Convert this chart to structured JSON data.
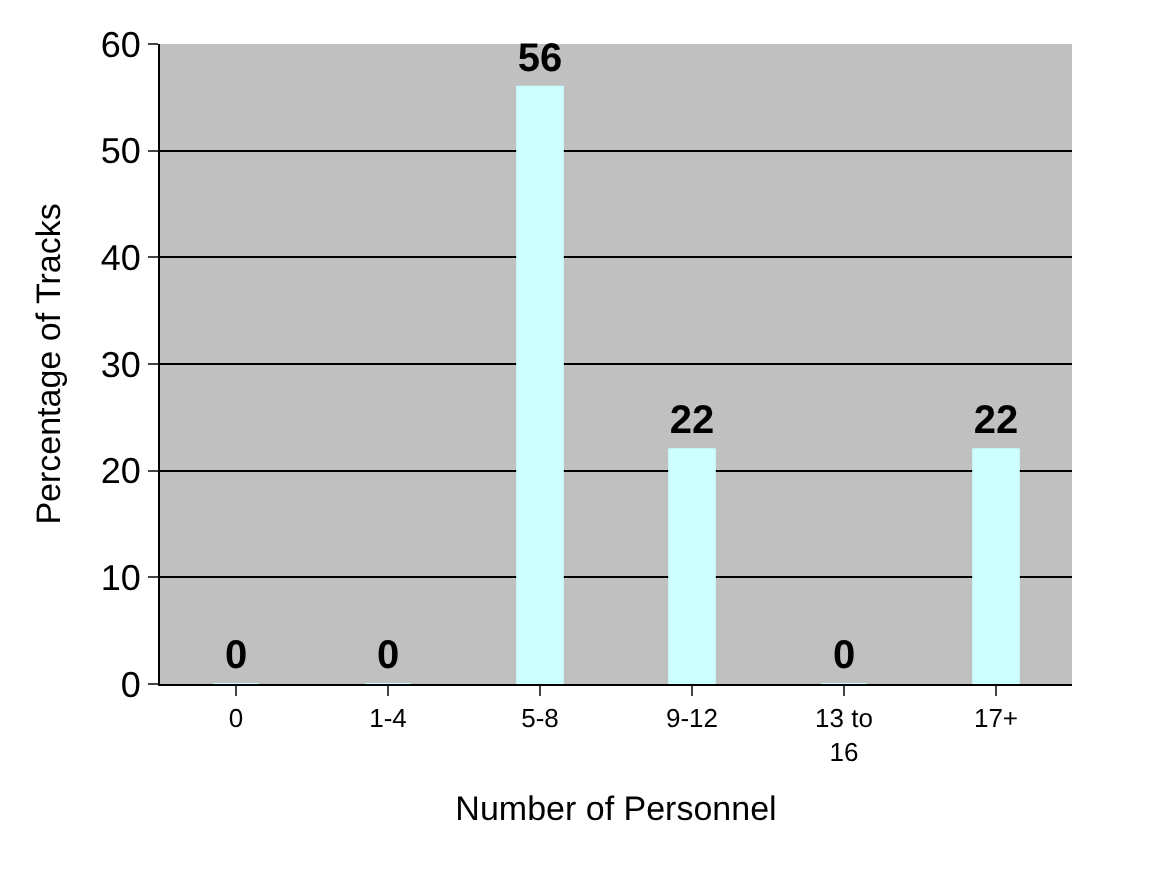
{
  "chart_data": {
    "type": "bar",
    "xlabel": "Number of Personnel",
    "ylabel": "Percentage of Tracks",
    "categories": [
      "0",
      "1-4",
      "5-8",
      "9-12",
      "13 to 16",
      "17+"
    ],
    "values": [
      0,
      0,
      56,
      22,
      0,
      22
    ],
    "color": "#ccffff",
    "ylim": [
      0,
      60
    ],
    "yticks": [
      0,
      10,
      20,
      30,
      40,
      50,
      60
    ],
    "grid": "y",
    "data_labels": true
  }
}
